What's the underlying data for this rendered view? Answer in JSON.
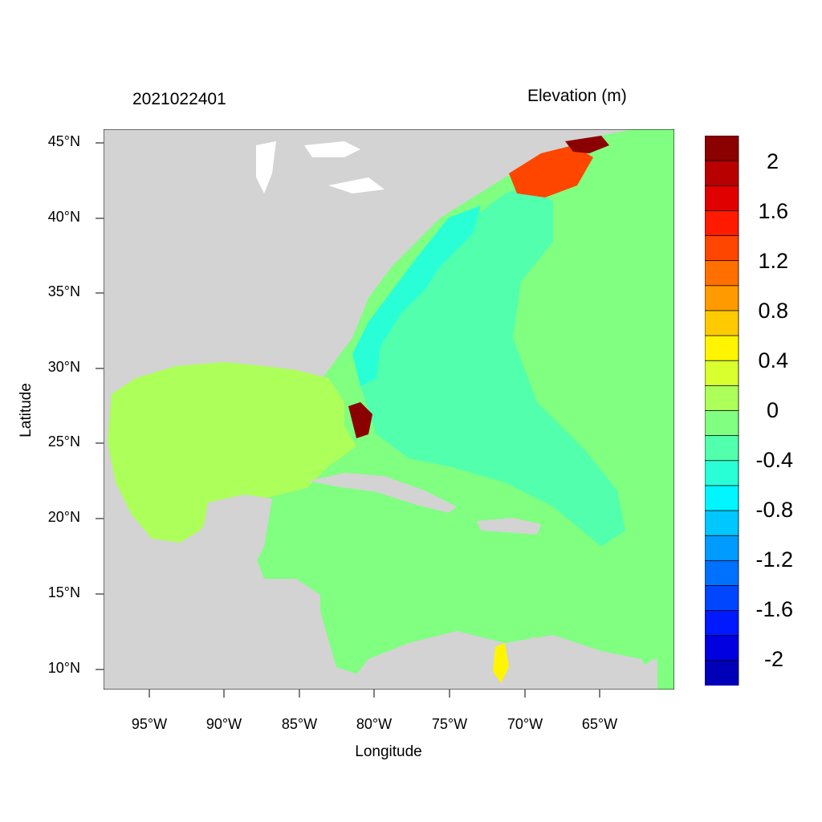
{
  "titles": {
    "left": "2021022401",
    "right": "Elevation (m)"
  },
  "axes": {
    "xlabel": "Longitude",
    "ylabel": "Latitude",
    "lat_ticks": [
      "45°N",
      "40°N",
      "35°N",
      "30°N",
      "25°N",
      "20°N",
      "15°N",
      "10°N"
    ],
    "lon_ticks": [
      "95°W",
      "90°W",
      "85°W",
      "80°W",
      "75°W",
      "70°W",
      "65°W"
    ]
  },
  "colorbar": {
    "labels": [
      "2",
      "1.6",
      "1.2",
      "0.8",
      "0.4",
      "0",
      "-0.4",
      "-0.8",
      "-1.2",
      "-1.6",
      "-2"
    ],
    "colors": [
      "#8b0000",
      "#b80000",
      "#e00000",
      "#ff1a00",
      "#ff4600",
      "#ff7000",
      "#ff9b00",
      "#ffcb00",
      "#fff500",
      "#d9ff2e",
      "#adff5a",
      "#80ff80",
      "#52ffad",
      "#28ffd6",
      "#00f5ff",
      "#00c7ff",
      "#009bff",
      "#0070ff",
      "#0046ff",
      "#0019ff",
      "#0000e0",
      "#0000b8"
    ]
  },
  "map_colors": {
    "land": "#d3d3d3",
    "lakes": "#ffffff",
    "gulf": "#adff5a",
    "caribbean": "#80ff80",
    "atlantic_shelf": "#52ffad",
    "near_coast": "#28ffd6",
    "surge_high": "#8b0000"
  }
}
